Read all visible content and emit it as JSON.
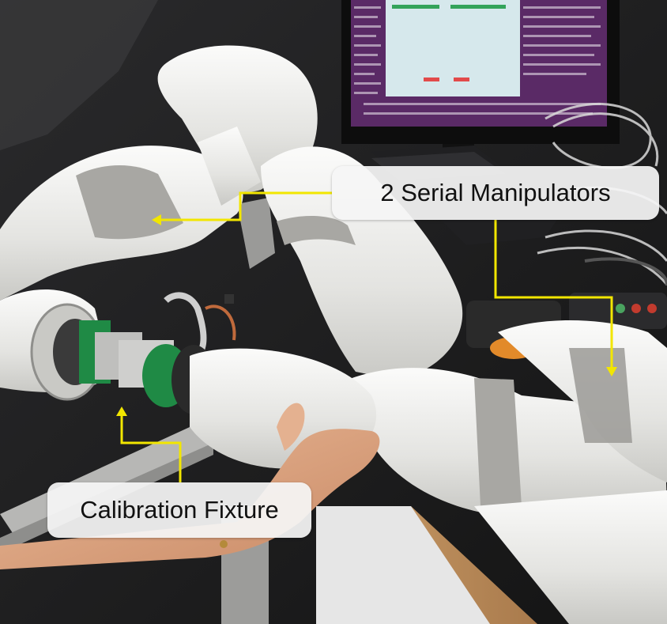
{
  "annotations": {
    "manipulators_label": "2 Serial Manipulators",
    "fixture_label": "Calibration Fixture"
  },
  "colors": {
    "arrow": "#f2e600",
    "robot_body": "#e9e9e7",
    "robot_band": "#a8a7a3",
    "fixture_ring": "#1f8a45",
    "monitor_screen": "#5a2a66"
  }
}
